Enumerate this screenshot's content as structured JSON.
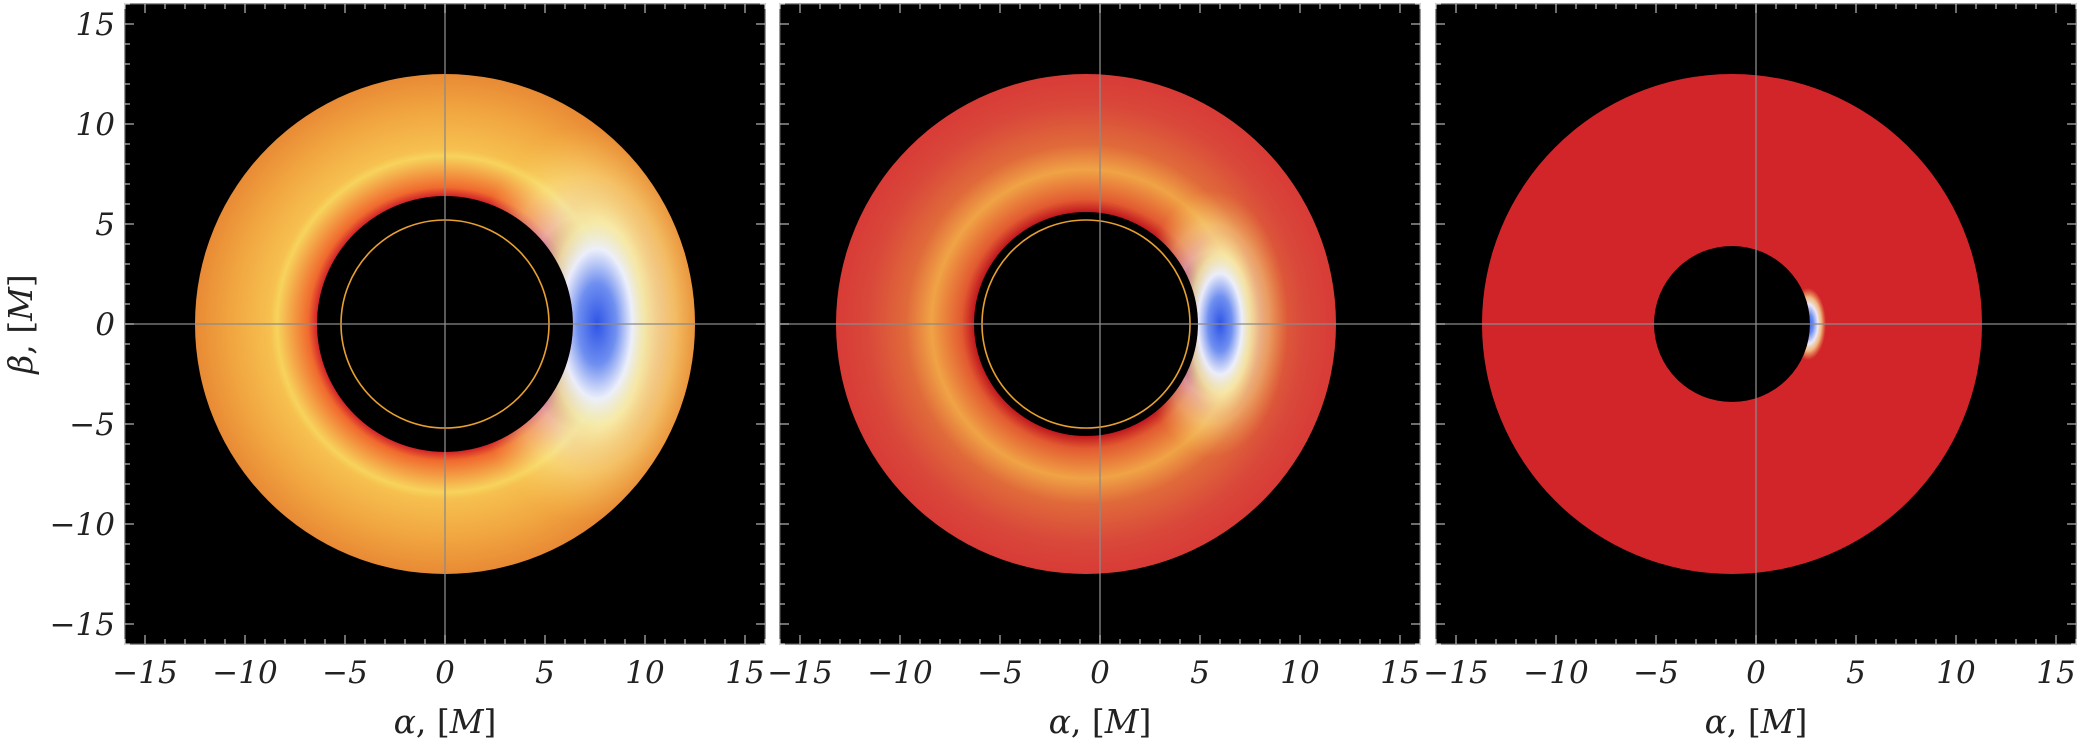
{
  "chart_data": [
    {
      "type": "heatmap",
      "panel": "left",
      "xlabel": {
        "sym": "α",
        "unit": "M"
      },
      "ylabel": {
        "sym": "β",
        "unit": "M"
      },
      "xlim": [
        -16,
        16
      ],
      "ylim": [
        -16,
        16
      ],
      "xticks": [
        -15,
        -10,
        -5,
        0,
        5,
        10,
        15
      ],
      "yticks": [
        -15,
        -10,
        -5,
        0,
        5,
        10,
        15
      ],
      "show_x_tick_labels": true,
      "show_y_tick_labels": true,
      "show_y_label": true,
      "disk": {
        "center": [
          0,
          0
        ],
        "outer_radius": 12.5,
        "inner_radius": 6.4
      },
      "shadow_ring": {
        "center": [
          0,
          0
        ],
        "radius": 5.2,
        "color": "#e8a030"
      },
      "blue_spot": {
        "center": [
          7.6,
          0
        ],
        "radius_x": 3.2,
        "radius_y": 6.8
      },
      "base_color": "#ef9e3c",
      "background": "#000000"
    },
    {
      "type": "heatmap",
      "panel": "middle",
      "xlabel": {
        "sym": "α",
        "unit": "M"
      },
      "xlim": [
        -16,
        16
      ],
      "ylim": [
        -16,
        16
      ],
      "xticks": [
        -15,
        -10,
        -5,
        0,
        5,
        10,
        15
      ],
      "yticks": [
        -15,
        -10,
        -5,
        0,
        5,
        10,
        15
      ],
      "show_x_tick_labels": true,
      "show_y_tick_labels": false,
      "show_y_label": false,
      "disk": {
        "center": [
          -0.7,
          0
        ],
        "outer_radius": 12.5,
        "inner_radius": 5.6
      },
      "shadow_ring": {
        "center": [
          -0.7,
          0
        ],
        "radius": 5.2,
        "color": "#e8a030"
      },
      "blue_spot": {
        "center": [
          6.0,
          0
        ],
        "radius_x": 2.0,
        "radius_y": 4.6
      },
      "base_color": "#db4a30",
      "background": "#000000"
    },
    {
      "type": "heatmap",
      "panel": "right",
      "xlabel": {
        "sym": "α",
        "unit": "M"
      },
      "xlim": [
        -16,
        16
      ],
      "ylim": [
        -16,
        16
      ],
      "xticks": [
        -15,
        -10,
        -5,
        0,
        5,
        10,
        15
      ],
      "yticks": [
        -15,
        -10,
        -5,
        0,
        5,
        10,
        15
      ],
      "show_x_tick_labels": true,
      "show_y_tick_labels": false,
      "show_y_label": false,
      "disk": {
        "center": [
          -1.2,
          0
        ],
        "outer_radius": 12.5,
        "inner_radius": 3.9
      },
      "shadow_ring": null,
      "blue_spot": {
        "center": [
          2.6,
          0
        ],
        "radius_x": 0.9,
        "radius_y": 1.8
      },
      "base_color": "#d2252a",
      "background": "#000000"
    }
  ]
}
